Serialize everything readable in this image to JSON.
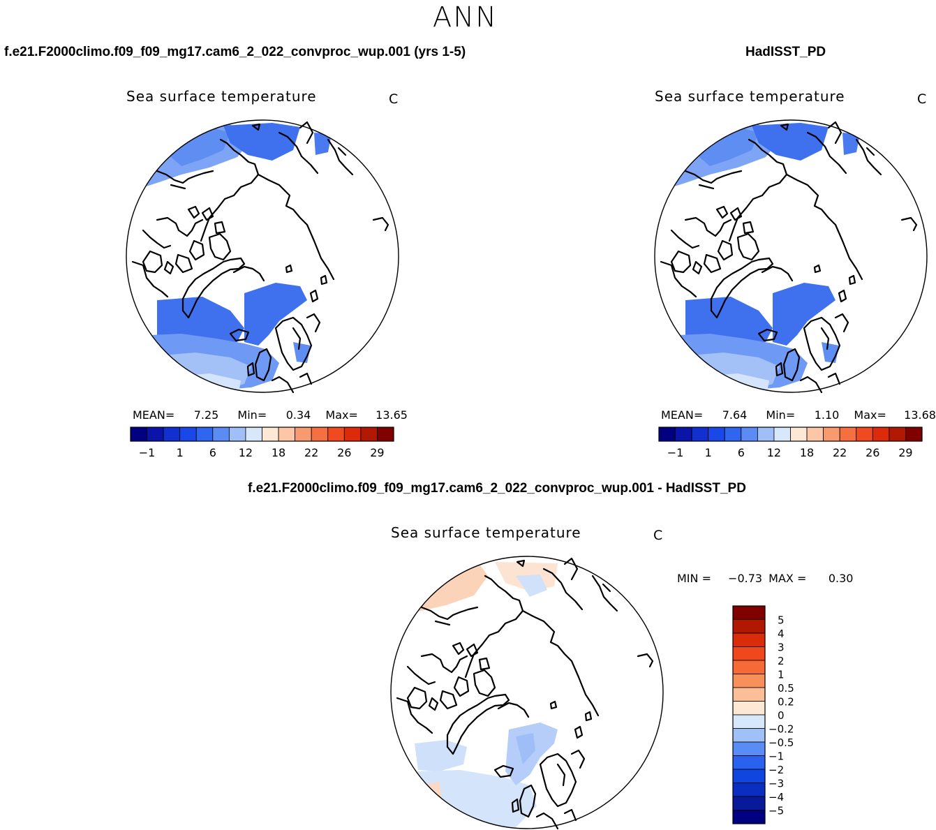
{
  "page_title": "ANN",
  "chart_data": [
    {
      "type": "heatmap",
      "panel": "top-left",
      "case_title": "f.e21.F2000climo.f09_f09_mg17.cam6_2_022_convproc_wup.001 (yrs 1-5)",
      "title": "Sea surface temperature",
      "units": "C",
      "projection": "north-polar-stereographic",
      "stats": {
        "mean_label": "MEAN=",
        "mean": "7.25",
        "min_label": "Min=",
        "min": "0.34",
        "max_label": "Max=",
        "max": "13.65"
      },
      "colorbar": {
        "orientation": "horizontal",
        "tick_labels": [
          "-1",
          "1",
          "6",
          "12",
          "18",
          "22",
          "26",
          "29"
        ],
        "n_colors": 16
      }
    },
    {
      "type": "heatmap",
      "panel": "top-right",
      "case_title": "HadISST_PD",
      "title": "Sea surface temperature",
      "units": "C",
      "projection": "north-polar-stereographic",
      "stats": {
        "mean_label": "MEAN=",
        "mean": "7.64",
        "min_label": "Min=",
        "min": "1.10",
        "max_label": "Max=",
        "max": "13.68"
      },
      "colorbar": {
        "orientation": "horizontal",
        "tick_labels": [
          "-1",
          "1",
          "6",
          "12",
          "18",
          "22",
          "26",
          "29"
        ],
        "n_colors": 16
      }
    },
    {
      "type": "heatmap",
      "panel": "bottom",
      "case_title": "f.e21.F2000climo.f09_f09_mg17.cam6_2_022_convproc_wup.001 - HadISST_PD",
      "title": "Sea surface temperature",
      "units": "C",
      "projection": "north-polar-stereographic",
      "stats": {
        "min_label": "MIN =",
        "min": "-0.73",
        "max_label": "MAX =",
        "max": "0.30"
      },
      "colorbar": {
        "orientation": "vertical",
        "tick_labels": [
          "5",
          "4",
          "3",
          "2",
          "1",
          "0.5",
          "0.2",
          "0",
          "-0.2",
          "-0.5",
          "-1",
          "-2",
          "-3",
          "-4",
          "-5"
        ],
        "n_colors": 16
      }
    }
  ],
  "colors": {
    "sst_scale": [
      "#000080",
      "#0a14a8",
      "#1230d0",
      "#1a48e8",
      "#2f66f0",
      "#5b8cf5",
      "#a0bff8",
      "#d8e8fb",
      "#fde8d6",
      "#fbc7a6",
      "#f89a70",
      "#f57040",
      "#f04a20",
      "#dd2a0a",
      "#b01800",
      "#800000"
    ],
    "diff_scale": [
      "#000080",
      "#081a9a",
      "#0a2ec0",
      "#1046e0",
      "#2a62f0",
      "#5a8cf6",
      "#a0c0f8",
      "#d8e8fb",
      "#fde8d6",
      "#fbbf98",
      "#f8905a",
      "#f56a36",
      "#f0481c",
      "#d82c0a",
      "#b01800",
      "#800000"
    ],
    "ocean_dark": "#3f70ee",
    "ocean_mid": "#5f8ef3",
    "ocean_light": "#9fbdf7",
    "ocean_pale": "#d4e4fb",
    "diff_warm": "#fbd3b8",
    "diff_cool": "#cfe0fa",
    "land_outline": "#000000"
  }
}
